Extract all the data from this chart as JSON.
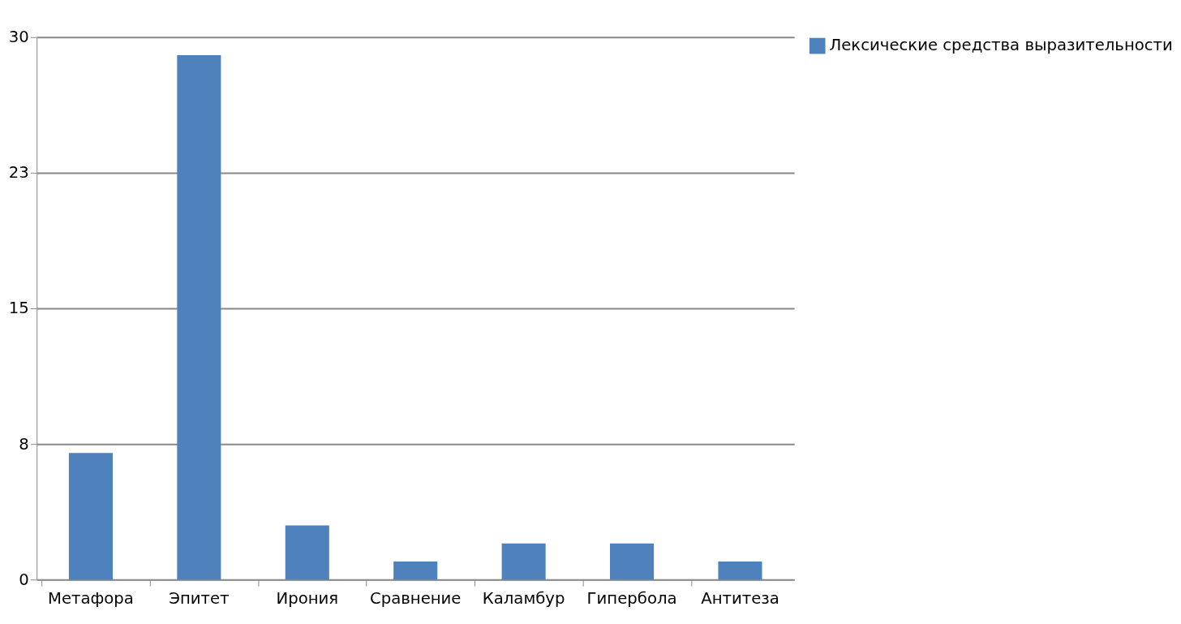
{
  "chart_data": {
    "type": "bar",
    "categories": [
      "Метафора",
      "Эпитет",
      "Ирония",
      "Сравнение",
      "Каламбур",
      "Гипербола",
      "Антитеза"
    ],
    "series": [
      {
        "name": "Лексические средства выразительности",
        "color": "#4f81bd",
        "values": [
          7,
          29,
          3,
          1,
          2,
          2,
          1
        ]
      }
    ],
    "ylim": [
      0,
      30
    ],
    "yticks": [
      0,
      {
        "value": 7.5,
        "label": "8"
      },
      15,
      {
        "value": 22.5,
        "label": "23"
      },
      30
    ],
    "grid": "y",
    "legend": "right"
  }
}
